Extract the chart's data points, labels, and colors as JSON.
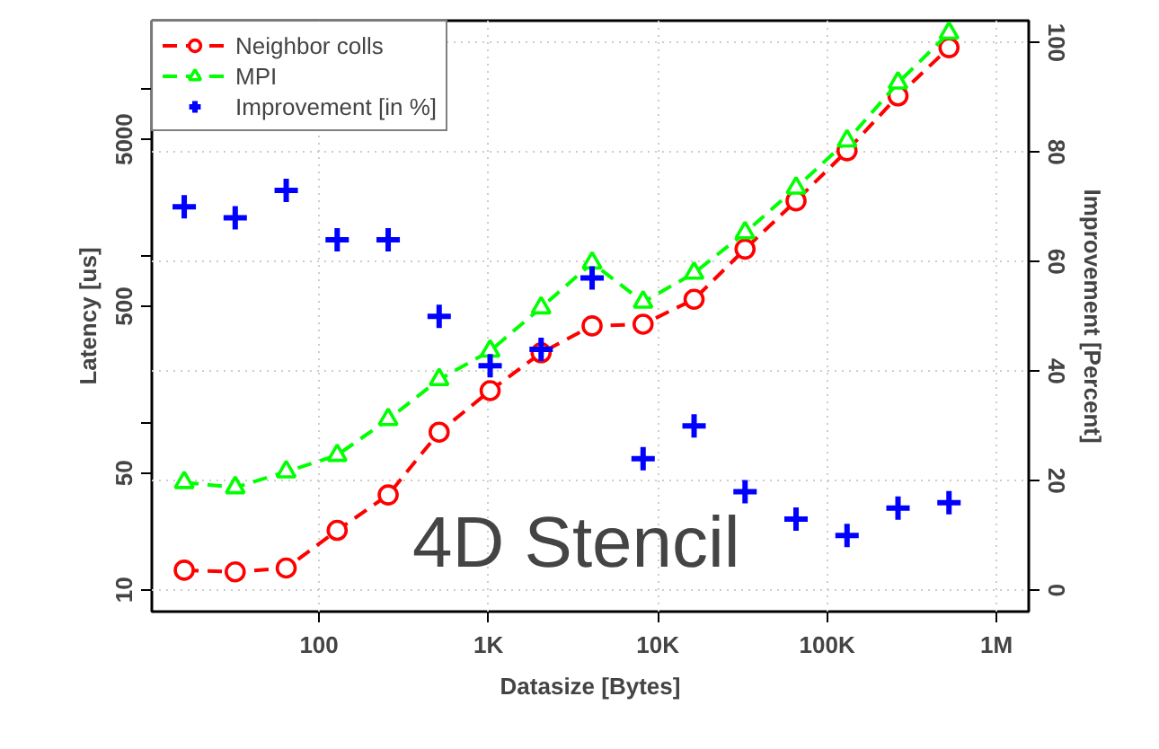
{
  "chart_data": {
    "type": "line",
    "x": [
      16,
      32,
      64,
      128,
      256,
      512,
      1024,
      2048,
      4096,
      8192,
      16384,
      32768,
      65536,
      131072,
      262144,
      524288
    ],
    "xlabel": "Datasize [Bytes]",
    "ylabel": "Latency [us]",
    "y2label": "Improvement [Percent]",
    "xlim": [
      10.3,
      1550000
    ],
    "xticks": [
      100,
      {
        "value": 1000,
        "label": "1K"
      },
      {
        "value": 10000,
        "label": "10K"
      },
      {
        "value": 100000,
        "label": "100K"
      },
      {
        "value": 1000000,
        "label": "1M"
      }
    ],
    "ylim": [
      7.4,
      25700
    ],
    "yticks": [
      10,
      50,
      {
        "value": 100,
        "label": null
      },
      500,
      {
        "value": 1000,
        "label": null
      },
      5000,
      {
        "value": 10000,
        "label": null
      }
    ],
    "y2lim": [
      -3.9,
      104
    ],
    "y2ticks": [
      0,
      20,
      40,
      60,
      80,
      100
    ],
    "log": "xy",
    "grid": true,
    "legend": "top left",
    "annotations": [
      "4D Stencil"
    ],
    "series": [
      {
        "name": "Neighbor colls",
        "color": "#ff0000",
        "marker": "circle",
        "line_style": "dashed",
        "values": [
          13.1,
          12.8,
          13.5,
          22.7,
          37,
          88,
          156,
          263,
          381,
          390,
          550,
          1100,
          2140,
          4270,
          9100,
          17700
        ]
      },
      {
        "name": "MPI",
        "color": "#00ff00",
        "marker": "triangle",
        "line_style": "dashed",
        "values": [
          44,
          41,
          51,
          64,
          105,
          182,
          270,
          490,
          910,
          530,
          790,
          1380,
          2560,
          4900,
          10900,
          21700
        ]
      },
      {
        "name": "Improvement [in %]",
        "type": "scatter",
        "axis": "y2",
        "color": "#0000ff",
        "marker": "cross",
        "values": [
          70,
          68,
          73,
          64,
          64,
          50,
          41,
          44,
          57,
          24,
          30,
          18,
          13,
          10,
          15,
          16
        ]
      }
    ]
  }
}
